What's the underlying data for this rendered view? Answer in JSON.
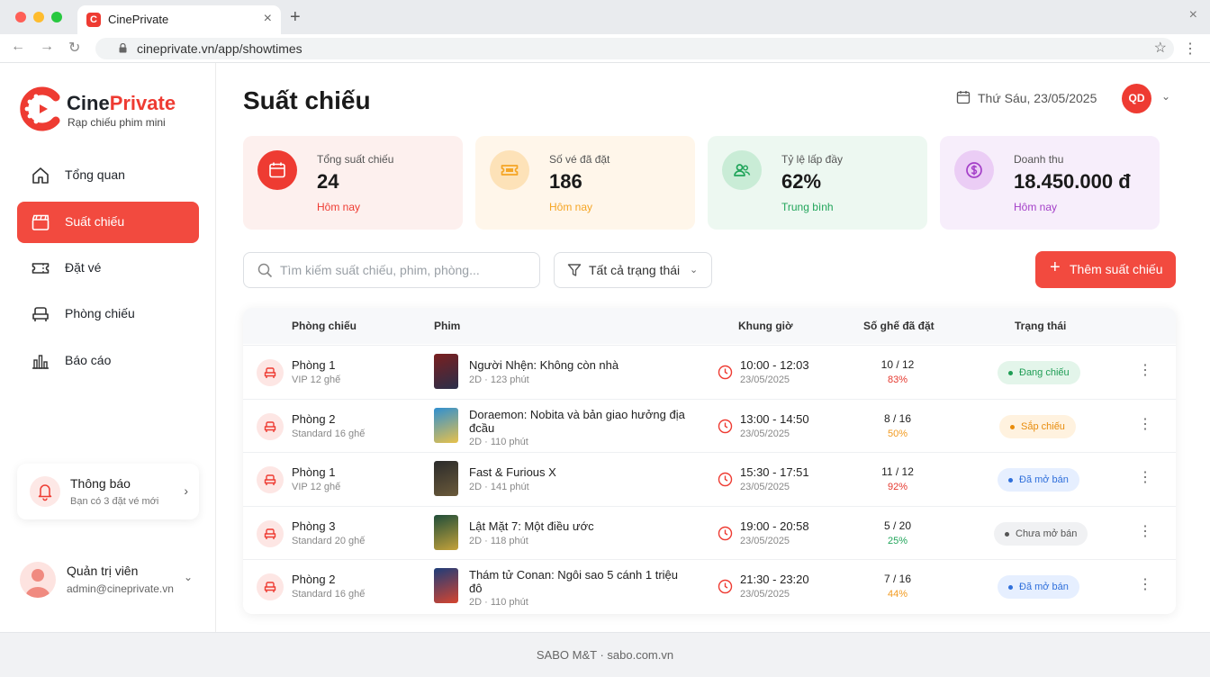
{
  "browser": {
    "tab_title": "CinePrivate",
    "favicon_letter": "C",
    "url": "cineprivate.vn/app/showtimes"
  },
  "sidebar": {
    "brand_part1": "Cine",
    "brand_part2": "Private",
    "brand_tagline": "Rạp chiếu phim mini",
    "items": [
      {
        "label": "Tổng quan",
        "icon": "home-icon"
      },
      {
        "label": "Suất chiếu",
        "icon": "clapperboard-icon",
        "active": true
      },
      {
        "label": "Đặt vé",
        "icon": "ticket-icon"
      },
      {
        "label": "Phòng chiếu",
        "icon": "armchair-icon"
      },
      {
        "label": "Báo cáo",
        "icon": "bar-chart-icon"
      }
    ],
    "notification": {
      "title": "Thông báo",
      "subtitle": "Bạn có 3 đặt vé mới"
    },
    "user": {
      "name": "Quản trị viên",
      "email": "admin@cineprivate.vn"
    }
  },
  "header": {
    "title": "Suất chiếu",
    "date": "Thứ Sáu, 23/05/2025",
    "avatar_initials": "QD"
  },
  "stats": [
    {
      "label": "Tổng suất chiếu",
      "value": "24",
      "sub": "Hôm nay",
      "color": "#ee3b32",
      "bg": "#fdf0ee"
    },
    {
      "label": "Số vé đã đặt",
      "value": "186",
      "sub": "Hôm nay",
      "color": "#f5a524",
      "bg": "#fff6ea"
    },
    {
      "label": "Tỷ lệ lấp đầy",
      "value": "62%",
      "sub": "Trung bình",
      "color": "#22a55b",
      "bg": "#edf8f1"
    },
    {
      "label": "Doanh thu",
      "value": "18.450.000 đ",
      "sub": "Hôm nay",
      "color": "#a43fc8",
      "bg": "#f7eefb"
    }
  ],
  "toolbar": {
    "search_placeholder": "Tìm kiếm suất chiếu, phim, phòng...",
    "filter_label": "Tất cả trạng thái",
    "add_label": "Thêm suất chiếu"
  },
  "table": {
    "headers": {
      "room": "Phòng chiếu",
      "movie": "Phim",
      "time": "Khung giờ",
      "seats": "Số ghế đã đặt",
      "status": "Trạng thái"
    },
    "rows": [
      {
        "room": "Phòng 1",
        "room_sub": "VIP 12 ghế",
        "movie": "Người Nhện: Không còn nhà",
        "movie_sub": "2D · 123 phút",
        "time": "10:00 - 12:03",
        "date": "23/05/2025",
        "seats": "10 / 12",
        "pct": "83%",
        "pct_color": "#e5392f",
        "status": "Đang chiếu",
        "status_color": "#1f9d55",
        "status_bg": "#e3f5ea"
      },
      {
        "room": "Phòng 2",
        "room_sub": "Standard 16 ghế",
        "movie": "Doraemon: Nobita và bản giao hưởng địa đcầu",
        "movie_sub": "2D · 110 phút",
        "time": "13:00 - 14:50",
        "date": "23/05/2025",
        "seats": "8 / 16",
        "pct": "50%",
        "pct_color": "#f29a1f",
        "status": "Sắp chiếu",
        "status_color": "#e88c0c",
        "status_bg": "#fff2df"
      },
      {
        "room": "Phòng 1",
        "room_sub": "VIP 12 ghế",
        "movie": "Fast & Furious X",
        "movie_sub": "2D · 141 phút",
        "time": "15:30 - 17:51",
        "date": "23/05/2025",
        "seats": "11 / 12",
        "pct": "92%",
        "pct_color": "#e5392f",
        "status": "Đã mở bán",
        "status_color": "#2f6fdb",
        "status_bg": "#e6efff"
      },
      {
        "room": "Phòng 3",
        "room_sub": "Standard 20 ghế",
        "movie": "Lật Mặt 7: Một điều ước",
        "movie_sub": "2D · 118 phút",
        "time": "19:00 - 20:58",
        "date": "23/05/2025",
        "seats": "5 / 20",
        "pct": "25%",
        "pct_color": "#22a55b",
        "status": "Chưa mở bán",
        "status_color": "#555555",
        "status_bg": "#f0f1f3"
      },
      {
        "room": "Phòng 2",
        "room_sub": "Standard 16 ghế",
        "movie": "Thám tử Conan: Ngôi sao 5 cánh 1 triệu đô",
        "movie_sub": "2D · 110 phút",
        "time": "21:30 - 23:20",
        "date": "23/05/2025",
        "seats": "7 / 16",
        "pct": "44%",
        "pct_color": "#f29a1f",
        "status": "Đã mở bán",
        "status_color": "#2f6fdb",
        "status_bg": "#e6efff"
      }
    ]
  },
  "footer": {
    "text": "SABO M&T · sabo.com.vn"
  }
}
